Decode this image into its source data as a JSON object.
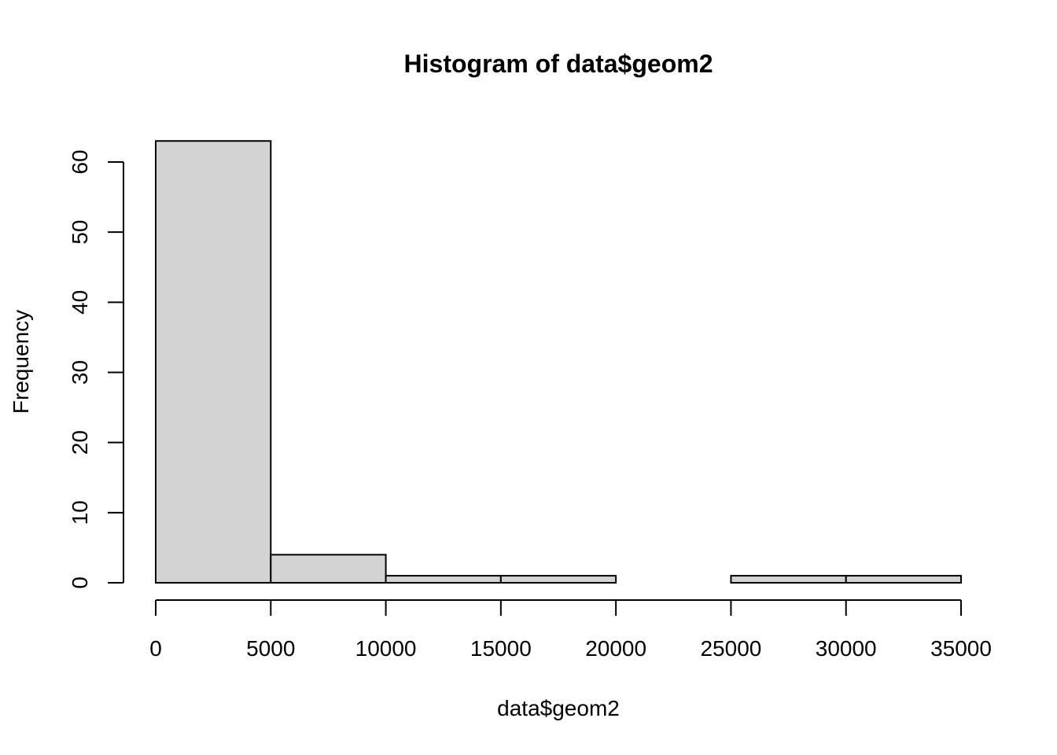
{
  "chart_data": {
    "type": "bar",
    "title": "Histogram of data$geom2",
    "xlabel": "data$geom2",
    "ylabel": "Frequency",
    "bins": [
      {
        "start": 0,
        "end": 5000,
        "count": 63
      },
      {
        "start": 5000,
        "end": 10000,
        "count": 4
      },
      {
        "start": 10000,
        "end": 15000,
        "count": 1
      },
      {
        "start": 15000,
        "end": 20000,
        "count": 1
      },
      {
        "start": 20000,
        "end": 25000,
        "count": 0
      },
      {
        "start": 25000,
        "end": 30000,
        "count": 1
      },
      {
        "start": 30000,
        "end": 35000,
        "count": 1
      }
    ],
    "xlim": [
      0,
      35000
    ],
    "ylim": [
      0,
      60
    ],
    "xticks": [
      "0",
      "5000",
      "10000",
      "15000",
      "20000",
      "25000",
      "30000",
      "35000"
    ],
    "yticks": [
      "0",
      "10",
      "20",
      "30",
      "40",
      "50",
      "60"
    ],
    "bar_fill": "#d3d3d3",
    "bar_stroke": "#000000",
    "grid": false,
    "legend": "none"
  }
}
